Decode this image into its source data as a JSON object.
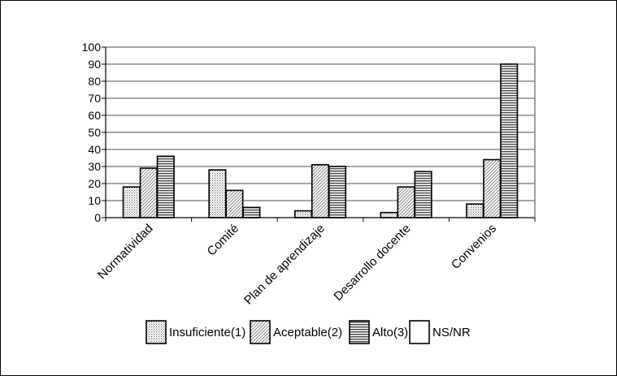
{
  "chart_data": {
    "type": "bar",
    "title": "",
    "xlabel": "",
    "ylabel": "",
    "ylim": [
      0,
      100
    ],
    "yticks": [
      0,
      10,
      20,
      30,
      40,
      50,
      60,
      70,
      80,
      90,
      100
    ],
    "grid": "horizontal",
    "legend_position": "bottom",
    "categories": [
      "Normatividad",
      "Comité",
      "Plan de aprendizaje",
      "Desarrollo docente",
      "Convenios"
    ],
    "series": [
      {
        "name": "Insuficiente(1)",
        "values": [
          18,
          28,
          4,
          3,
          8
        ],
        "pattern": "dots"
      },
      {
        "name": "Aceptable(2)",
        "values": [
          29,
          16,
          31,
          18,
          34
        ],
        "pattern": "diagonal"
      },
      {
        "name": "Alto(3)",
        "values": [
          36,
          6,
          30,
          27,
          90
        ],
        "pattern": "horizontal"
      },
      {
        "name": "NS/NR",
        "values": [
          0,
          0,
          0,
          0,
          0
        ],
        "pattern": "none"
      }
    ]
  }
}
